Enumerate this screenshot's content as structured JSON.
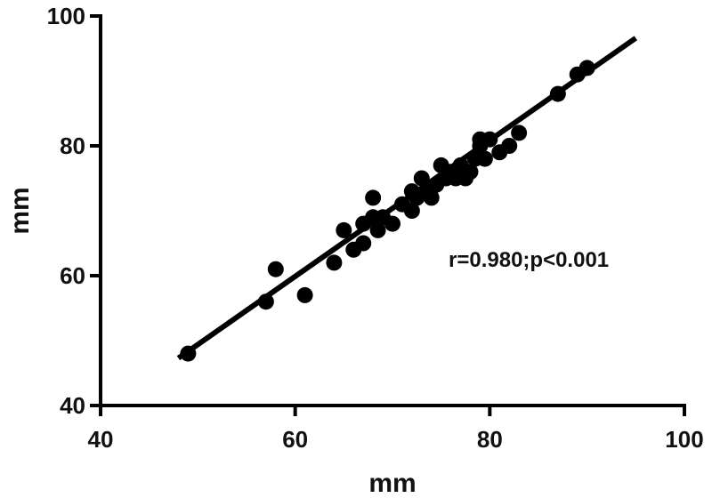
{
  "chart_data": {
    "type": "scatter",
    "title": "",
    "xlabel": "mm",
    "ylabel": "mm",
    "xlim": [
      40,
      100
    ],
    "ylim": [
      40,
      100
    ],
    "xticks": [
      40,
      60,
      80,
      100
    ],
    "yticks": [
      40,
      60,
      80,
      100
    ],
    "grid": false,
    "annotation": "r=0.980;p<0.001",
    "points": [
      {
        "x": 49,
        "y": 48
      },
      {
        "x": 57,
        "y": 56
      },
      {
        "x": 58,
        "y": 61
      },
      {
        "x": 61,
        "y": 57
      },
      {
        "x": 64,
        "y": 62
      },
      {
        "x": 65,
        "y": 67
      },
      {
        "x": 66,
        "y": 64
      },
      {
        "x": 67,
        "y": 65
      },
      {
        "x": 67,
        "y": 68
      },
      {
        "x": 68,
        "y": 69
      },
      {
        "x": 68,
        "y": 72
      },
      {
        "x": 68.5,
        "y": 67
      },
      {
        "x": 69,
        "y": 69
      },
      {
        "x": 70,
        "y": 68
      },
      {
        "x": 71,
        "y": 71
      },
      {
        "x": 72,
        "y": 73
      },
      {
        "x": 72,
        "y": 70
      },
      {
        "x": 72.5,
        "y": 72
      },
      {
        "x": 73,
        "y": 75
      },
      {
        "x": 73.5,
        "y": 73
      },
      {
        "x": 74,
        "y": 72
      },
      {
        "x": 74.5,
        "y": 74
      },
      {
        "x": 75,
        "y": 77
      },
      {
        "x": 75.5,
        "y": 75
      },
      {
        "x": 76,
        "y": 76
      },
      {
        "x": 76.5,
        "y": 75
      },
      {
        "x": 77,
        "y": 77
      },
      {
        "x": 77.5,
        "y": 75
      },
      {
        "x": 78,
        "y": 76
      },
      {
        "x": 78.5,
        "y": 78
      },
      {
        "x": 79,
        "y": 80
      },
      {
        "x": 79,
        "y": 81
      },
      {
        "x": 79.5,
        "y": 78
      },
      {
        "x": 80,
        "y": 81
      },
      {
        "x": 81,
        "y": 79
      },
      {
        "x": 82,
        "y": 80
      },
      {
        "x": 83,
        "y": 82
      },
      {
        "x": 87,
        "y": 88
      },
      {
        "x": 89,
        "y": 91
      },
      {
        "x": 90,
        "y": 92
      }
    ],
    "fit_line": {
      "x": [
        48,
        95
      ],
      "y": [
        47.3,
        96.6
      ]
    },
    "colors": {
      "marker": "#000000",
      "line": "#000000",
      "axis": "#000000"
    }
  }
}
